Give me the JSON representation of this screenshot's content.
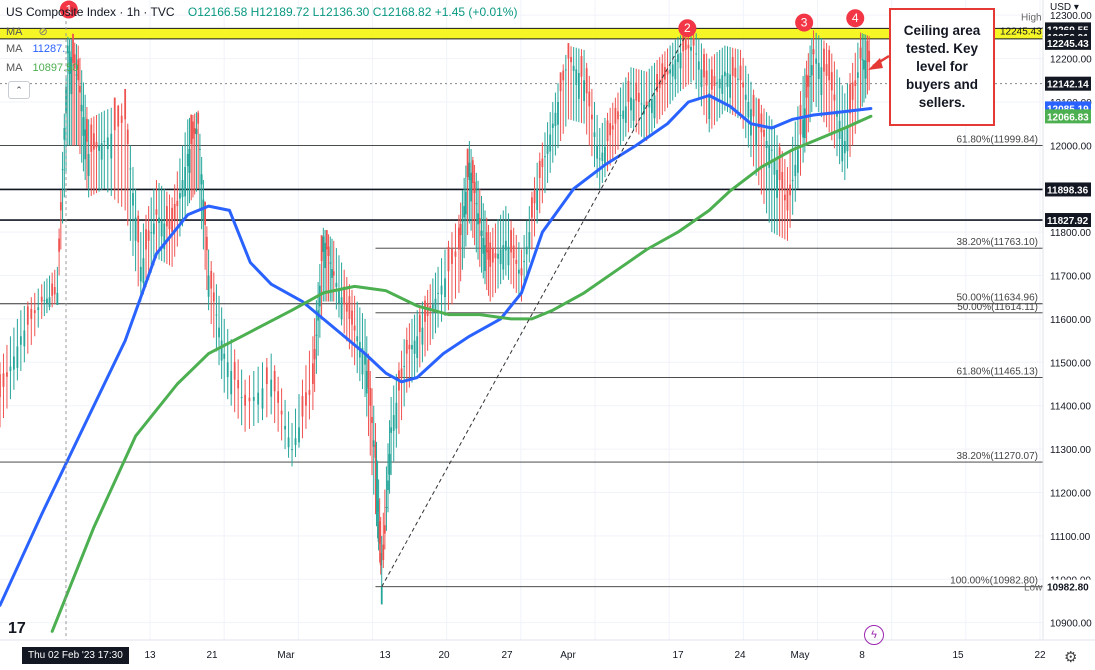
{
  "header": {
    "title": "US Composite Index · 1h · TVC",
    "ohlc": "O12166.58 H12189.72 L12136.30 C12168.82 +1.45 (+0.01%)"
  },
  "indicators": [
    {
      "label": "MA",
      "value": ""
    },
    {
      "label": "MA",
      "value": "11287."
    },
    {
      "label": "MA",
      "value": "10897.50"
    }
  ],
  "currency": "USD",
  "date_cursor": "Thu 02 Feb '23   17:30",
  "callout": "Ceiling area tested. Key level for buyers and sellers.",
  "colors": {
    "ma_fast": "#2962ff",
    "ma_slow": "#4caf50",
    "zone": "#f5f500",
    "marker": "#f23645",
    "up": "#26a69a",
    "down": "#ef5350"
  },
  "icons": [
    "eye-off-icon",
    "collapse-icon",
    "tradingview-logo-icon",
    "lightning-icon",
    "gear-icon"
  ],
  "chart_data": {
    "type": "line",
    "title": "US Composite Index · 1h · TVC",
    "ylim": [
      10860,
      12335
    ],
    "y_ticks": [
      10900,
      11000,
      11100,
      11200,
      11300,
      11400,
      11500,
      11600,
      11700,
      11800,
      11900,
      12000,
      12100,
      12200,
      12300
    ],
    "x_ticks": [
      "13",
      "21",
      "Mar",
      "13",
      "20",
      "27",
      "Apr",
      "17",
      "24",
      "May",
      "8",
      "15",
      "22"
    ],
    "price_badges": [
      {
        "text": "High",
        "value": 12269.55,
        "style": "plain"
      },
      {
        "text": "12269.55",
        "value": 12269.55,
        "style": "dark"
      },
      {
        "text": "12256.91",
        "value": 12256.91,
        "style": "dark"
      },
      {
        "text": "12245.43",
        "value": 12245.43,
        "style": "dark"
      },
      {
        "text": "12142.14",
        "value": 12142.14,
        "style": "dark"
      },
      {
        "text": "12085.19",
        "value": 12085.19,
        "style": "blue"
      },
      {
        "text": "12066.83",
        "value": 12066.83,
        "style": "green"
      },
      {
        "text": "11898.36",
        "value": 11898.36,
        "style": "dark"
      },
      {
        "text": "11827.92",
        "value": 11827.92,
        "style": "dark"
      },
      {
        "text": "Low",
        "value": 10982.8,
        "style": "plain"
      },
      {
        "text": "10982.80",
        "value": 10982.8,
        "style": "plain"
      }
    ],
    "horizontal_levels": [
      {
        "value": 12269.55,
        "style": "solid"
      },
      {
        "value": 12245.43,
        "style": "solid"
      },
      {
        "value": 12142.14,
        "style": "dotted"
      },
      {
        "value": 11898.36,
        "style": "solid-bold"
      },
      {
        "value": 11827.92,
        "style": "solid-bold"
      }
    ],
    "zone": {
      "from": 12245.43,
      "to": 12269.55,
      "label": "12245.43)"
    },
    "fib_levels": [
      {
        "label": "61.80%(11999.84)",
        "value": 11999.84,
        "x_start": 0
      },
      {
        "label": "38.20%(11763.10)",
        "value": 11763.1,
        "x_start": 0.36
      },
      {
        "label": "50.00%(11634.96)",
        "value": 11634.96,
        "x_start": 0
      },
      {
        "label": "50.00%(11614.11)",
        "value": 11614.11,
        "x_start": 0.36
      },
      {
        "label": "61.80%(11465.13)",
        "value": 11465.13,
        "x_start": 0.36
      },
      {
        "label": "38.20%(11270.07)",
        "value": 11270.07,
        "x_start": 0
      },
      {
        "label": "100.00%(10982.80)",
        "value": 10982.8,
        "x_start": 0.36
      }
    ],
    "markers": [
      {
        "label": "1",
        "x": 0.066,
        "value": 12313
      },
      {
        "label": "2",
        "x": 0.659,
        "value": 12270
      },
      {
        "label": "3",
        "x": 0.771,
        "value": 12283
      },
      {
        "label": "4",
        "x": 0.82,
        "value": 12293
      }
    ],
    "trend_line": {
      "from": [
        0.366,
        10982.8
      ],
      "to": [
        0.659,
        12260
      ]
    },
    "price_path": {
      "x": [
        0,
        0.02,
        0.04,
        0.055,
        0.065,
        0.075,
        0.085,
        0.1,
        0.12,
        0.135,
        0.15,
        0.165,
        0.18,
        0.19,
        0.2,
        0.215,
        0.235,
        0.26,
        0.28,
        0.3,
        0.31,
        0.32,
        0.335,
        0.35,
        0.36,
        0.366,
        0.375,
        0.39,
        0.405,
        0.42,
        0.44,
        0.45,
        0.46,
        0.47,
        0.485,
        0.5,
        0.515,
        0.53,
        0.545,
        0.56,
        0.575,
        0.59,
        0.605,
        0.62,
        0.635,
        0.65,
        0.665,
        0.68,
        0.695,
        0.71,
        0.725,
        0.74,
        0.755,
        0.77,
        0.78,
        0.795,
        0.81,
        0.825,
        0.835
      ],
      "y": [
        11420,
        11560,
        11640,
        11660,
        12230,
        12150,
        11980,
        12010,
        12060,
        11720,
        11840,
        11800,
        11980,
        12050,
        11700,
        11520,
        11400,
        11460,
        11300,
        11450,
        11790,
        11700,
        11600,
        11520,
        11280,
        10983,
        11350,
        11520,
        11580,
        11660,
        11760,
        11960,
        11820,
        11720,
        11780,
        11700,
        11900,
        12050,
        12200,
        12150,
        11970,
        12050,
        12110,
        12090,
        12140,
        12210,
        12230,
        12120,
        12170,
        12150,
        12050,
        11990,
        11850,
        12060,
        12210,
        12150,
        12010,
        12200,
        12190
      ],
      "ylow": [
        11350,
        11480,
        11600,
        11640,
        12000,
        12000,
        11880,
        11900,
        11850,
        11640,
        11740,
        11720,
        11860,
        11900,
        11620,
        11430,
        11340,
        11380,
        11260,
        11390,
        11640,
        11640,
        11530,
        11420,
        11150,
        10983,
        11240,
        11430,
        11500,
        11580,
        11660,
        11820,
        11720,
        11640,
        11700,
        11640,
        11820,
        11960,
        12060,
        12050,
        11900,
        11980,
        12040,
        12010,
        12070,
        12120,
        12150,
        12030,
        12080,
        12060,
        11930,
        11800,
        11780,
        11960,
        12100,
        12030,
        11920,
        12080,
        12136
      ],
      "yhigh": [
        11500,
        11620,
        11680,
        11720,
        12250,
        12230,
        12060,
        12080,
        12100,
        11800,
        11920,
        11880,
        12060,
        12080,
        11760,
        11600,
        11460,
        11520,
        11360,
        11560,
        11810,
        11780,
        11680,
        11600,
        11360,
        11100,
        11420,
        11580,
        11640,
        11720,
        11840,
        12010,
        11900,
        11800,
        11860,
        11760,
        11960,
        12100,
        12230,
        12220,
        12040,
        12110,
        12180,
        12170,
        12210,
        12250,
        12270,
        12200,
        12230,
        12220,
        12110,
        12060,
        11950,
        12160,
        12265,
        12230,
        12120,
        12260,
        12250
      ]
    },
    "series": [
      {
        "name": "MA",
        "x": [
          0,
          0.04,
          0.08,
          0.12,
          0.15,
          0.18,
          0.2,
          0.22,
          0.24,
          0.26,
          0.29,
          0.32,
          0.35,
          0.37,
          0.385,
          0.4,
          0.425,
          0.45,
          0.48,
          0.5,
          0.52,
          0.55,
          0.58,
          0.61,
          0.64,
          0.66,
          0.68,
          0.7,
          0.72,
          0.74,
          0.76,
          0.78,
          0.8,
          0.835
        ],
        "values": [
          10940,
          11150,
          11350,
          11550,
          11750,
          11840,
          11860,
          11850,
          11730,
          11680,
          11640,
          11580,
          11520,
          11475,
          11455,
          11465,
          11520,
          11560,
          11600,
          11660,
          11800,
          11900,
          11955,
          12000,
          12050,
          12100,
          12115,
          12090,
          12050,
          12040,
          12060,
          12070,
          12075,
          12085
        ]
      },
      {
        "name": "MA",
        "x": [
          0.05,
          0.09,
          0.13,
          0.17,
          0.2,
          0.24,
          0.28,
          0.31,
          0.34,
          0.37,
          0.4,
          0.43,
          0.46,
          0.49,
          0.51,
          0.53,
          0.56,
          0.59,
          0.62,
          0.65,
          0.68,
          0.7,
          0.73,
          0.76,
          0.79,
          0.81,
          0.835
        ],
        "values": [
          10880,
          11120,
          11330,
          11450,
          11520,
          11570,
          11620,
          11660,
          11675,
          11665,
          11630,
          11610,
          11610,
          11600,
          11600,
          11620,
          11660,
          11710,
          11760,
          11800,
          11850,
          11895,
          11950,
          11990,
          12020,
          12040,
          12067
        ]
      }
    ]
  }
}
